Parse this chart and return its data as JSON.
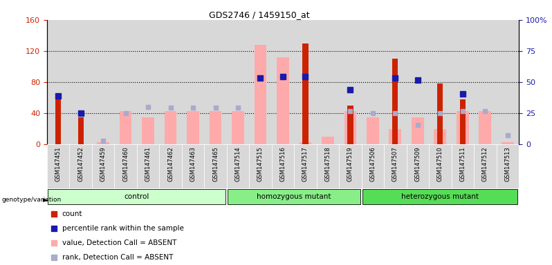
{
  "title": "GDS2746 / 1459150_at",
  "samples": [
    "GSM147451",
    "GSM147452",
    "GSM147459",
    "GSM147460",
    "GSM147461",
    "GSM147462",
    "GSM147463",
    "GSM147465",
    "GSM147514",
    "GSM147515",
    "GSM147516",
    "GSM147517",
    "GSM147518",
    "GSM147519",
    "GSM147506",
    "GSM147507",
    "GSM147509",
    "GSM147510",
    "GSM147511",
    "GSM147512",
    "GSM147513"
  ],
  "group_spans": [
    {
      "label": "control",
      "start": 0,
      "end": 7,
      "color": "#ccffcc"
    },
    {
      "label": "homozygous mutant",
      "start": 8,
      "end": 13,
      "color": "#88ee88"
    },
    {
      "label": "heterozygous mutant",
      "start": 14,
      "end": 20,
      "color": "#55dd55"
    }
  ],
  "count": [
    60,
    35,
    0,
    0,
    0,
    0,
    0,
    0,
    0,
    0,
    0,
    130,
    0,
    50,
    0,
    110,
    0,
    78,
    58,
    0,
    0
  ],
  "percentile_rank": [
    62,
    40,
    0,
    0,
    0,
    0,
    0,
    0,
    0,
    85,
    87,
    87,
    0,
    70,
    0,
    85,
    83,
    0,
    65,
    0,
    0
  ],
  "absent_value": [
    0,
    0,
    3,
    43,
    35,
    43,
    43,
    43,
    43,
    128,
    112,
    3,
    10,
    43,
    35,
    20,
    35,
    20,
    43,
    43,
    3
  ],
  "absent_rank": [
    0,
    0,
    5,
    40,
    48,
    47,
    47,
    47,
    47,
    0,
    0,
    0,
    0,
    43,
    40,
    40,
    25,
    40,
    43,
    43,
    12
  ],
  "ylim_left": [
    0,
    160
  ],
  "yticks_left": [
    0,
    40,
    80,
    120,
    160
  ],
  "yticks_right": [
    0,
    25,
    50,
    75,
    100
  ],
  "ytick_labels_right": [
    "0",
    "25",
    "50",
    "75",
    "100%"
  ],
  "color_count": "#cc2200",
  "color_percentile": "#1a1aaa",
  "color_absent_value": "#ffaaaa",
  "color_absent_rank": "#aaaacc",
  "tick_bg_color": "#d8d8d8",
  "legend_items": [
    {
      "color": "#cc2200",
      "label": "count",
      "type": "square"
    },
    {
      "color": "#1a1aaa",
      "label": "percentile rank within the sample",
      "type": "square"
    },
    {
      "color": "#ffaaaa",
      "label": "value, Detection Call = ABSENT",
      "type": "square"
    },
    {
      "color": "#aaaacc",
      "label": "rank, Detection Call = ABSENT",
      "type": "square"
    }
  ]
}
